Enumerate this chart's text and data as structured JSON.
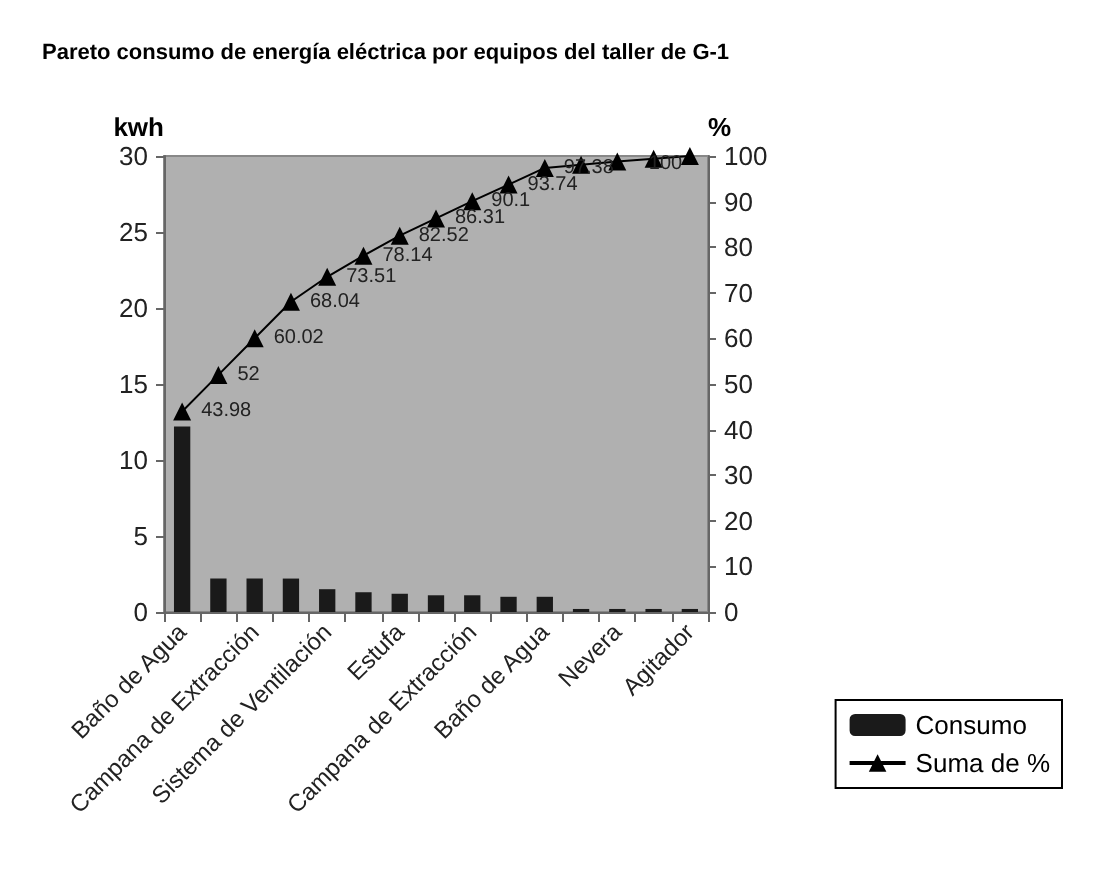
{
  "chart_data": {
    "type": "bar",
    "title": "Pareto consumo de energía eléctrica por equipos del taller de G-1",
    "categories": [
      "Baño de Agua",
      null,
      "Campana de Extracción",
      null,
      "Sistema de Ventilación",
      null,
      "Estufa",
      null,
      "Campana de Extracción",
      null,
      "Baño de Agua",
      null,
      "Nevera",
      null,
      "Agitador"
    ],
    "series": [
      {
        "name": "Consumo",
        "color": "#1a1a1a",
        "values": [
          12.2,
          2.2,
          2.2,
          2.2,
          1.5,
          1.3,
          1.2,
          1.1,
          1.1,
          1.0,
          1.0,
          0.2,
          0.2,
          0.2,
          0.2
        ]
      },
      {
        "name": "Suma de %",
        "type": "line",
        "axis": "y2",
        "color": "#000000",
        "marker": "triangle",
        "line_style": "solid",
        "values": [
          43.98,
          52,
          60.02,
          68.04,
          73.51,
          78.14,
          82.52,
          86.31,
          90.1,
          93.74,
          97.38,
          98.1,
          98.8,
          99.4,
          100
        ],
        "value_labels": [
          "43.98",
          "52",
          "60.02",
          "68.04",
          "73.51",
          "78.14",
          "82.52",
          "86.31",
          "90.1",
          "93.74",
          "97.38",
          null,
          null,
          null,
          "100"
        ]
      }
    ],
    "ylabel": "kwh",
    "y2label": "%",
    "ylim": [
      0,
      30
    ],
    "yticks": [
      0,
      5,
      10,
      15,
      20,
      25,
      30
    ],
    "y2lim": [
      0,
      100
    ],
    "y2ticks": [
      0,
      10,
      20,
      30,
      40,
      50,
      60,
      70,
      80,
      90,
      100
    ],
    "grid": false,
    "legend": "bottom right"
  }
}
